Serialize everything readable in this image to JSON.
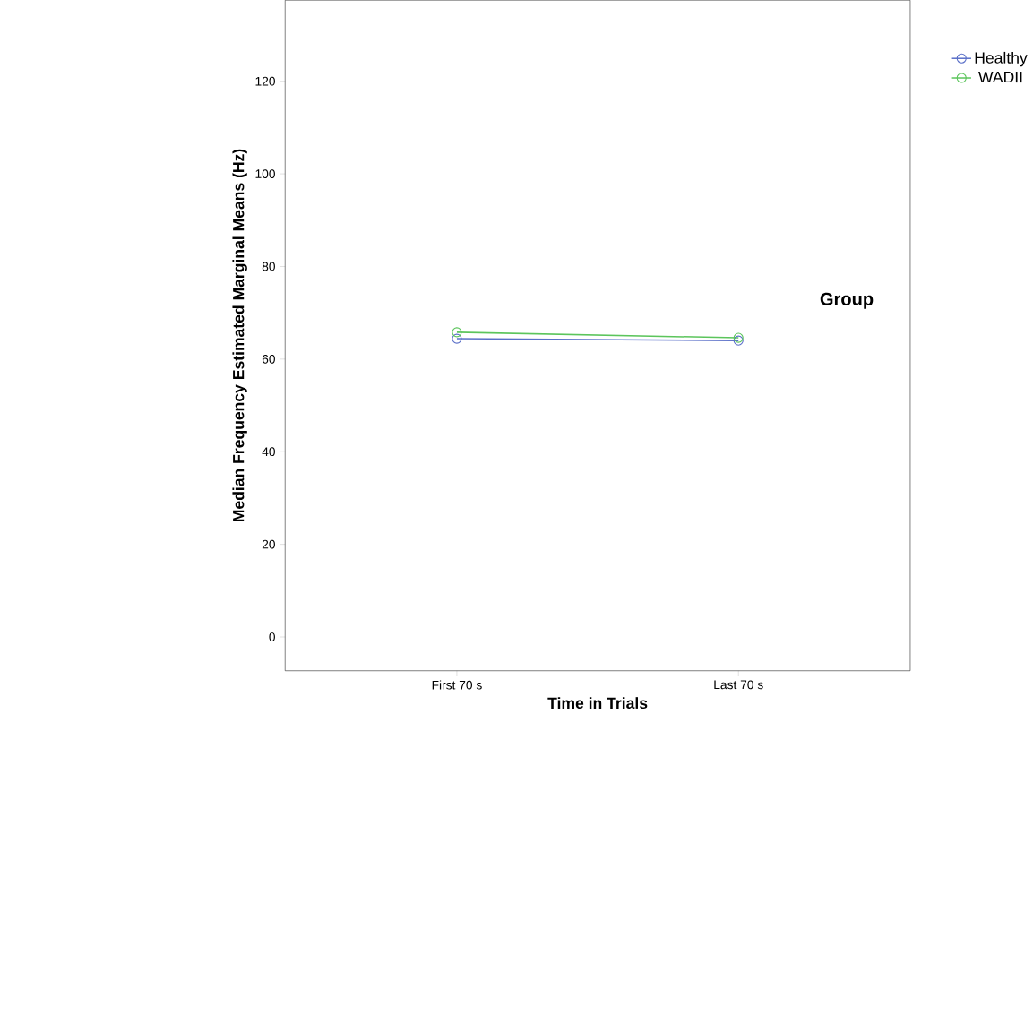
{
  "chart_data": {
    "type": "line",
    "xlabel": "Time in Trials",
    "ylabel": "Median Frequency Estimated Marginal Means (Hz)",
    "legend_title": "Group",
    "categories": [
      "First 70 s",
      "Last 70 s"
    ],
    "series": [
      {
        "name": "Healthy",
        "color": "#5a6fc8",
        "values": [
          64.4,
          64.0
        ]
      },
      {
        "name": "WADII",
        "color": "#5cc55c",
        "values": [
          65.8,
          64.6
        ]
      }
    ],
    "ylim": [
      -7.3,
      137.5
    ],
    "yticks": [
      0,
      20,
      40,
      60,
      80,
      100,
      120
    ],
    "grid": false,
    "legend": "right",
    "marker": "circle",
    "line_style": "solid"
  }
}
